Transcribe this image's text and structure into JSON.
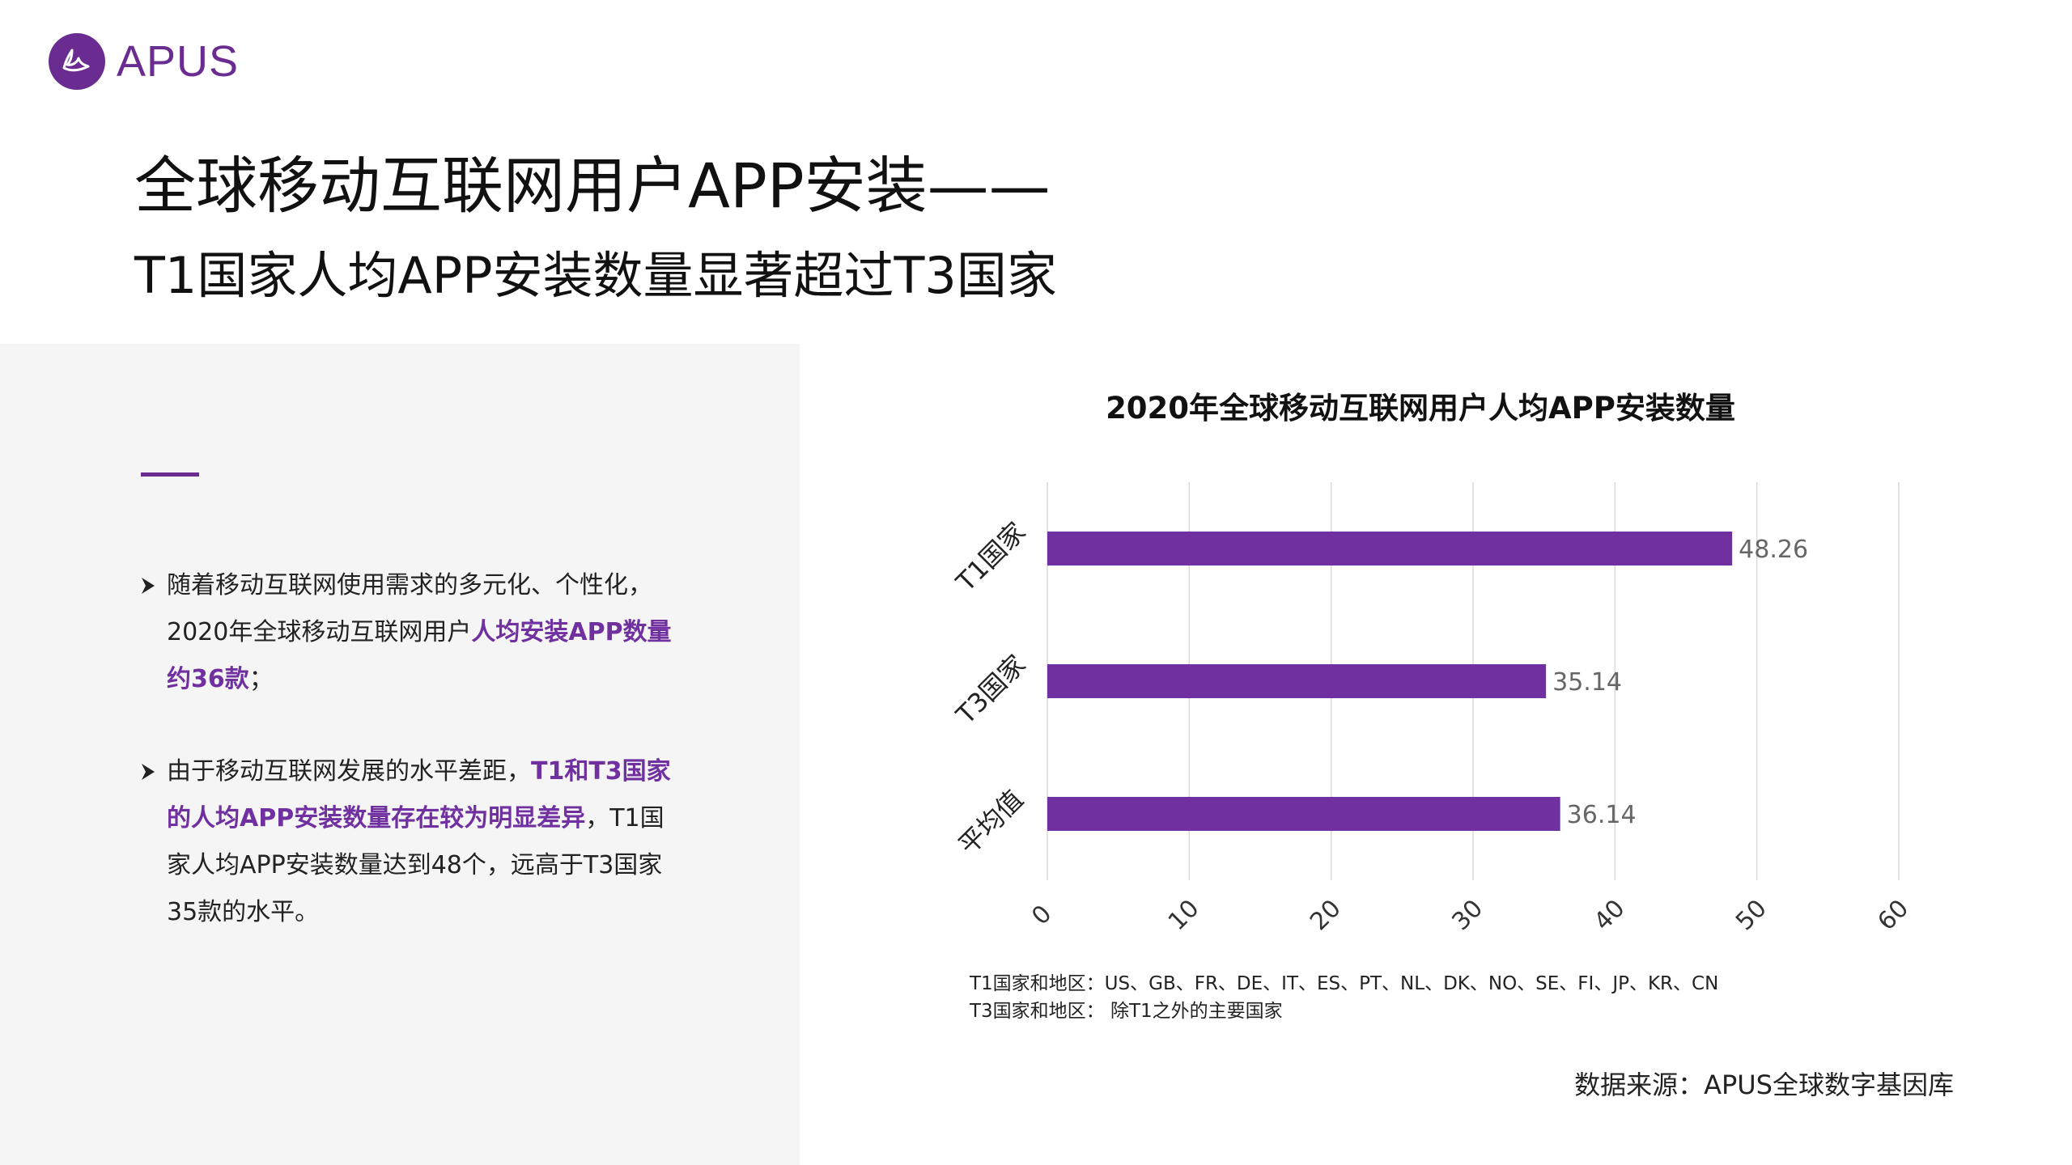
{
  "brand": {
    "name": "APUS",
    "color": "#6a2c91"
  },
  "title": {
    "main": "全球移动互联网用户APP安装——",
    "sub": "T1国家人均APP安装数量显著超过T3国家"
  },
  "bullets": [
    {
      "segments": [
        {
          "text": "随着移动互联网使用需求的多元化、个性化，2020年全球移动互联网用户",
          "highlight": false
        },
        {
          "text": "人均安装APP数量约36款",
          "highlight": true
        },
        {
          "text": "；",
          "highlight": false
        }
      ]
    },
    {
      "segments": [
        {
          "text": "由于移动互联网发展的水平差距，",
          "highlight": false
        },
        {
          "text": "T1和T3国家的人均APP安装数量存在较为明显差异",
          "highlight": true
        },
        {
          "text": "，T1国家人均APP安装数量达到48个，远高于T3国家35款的水平。",
          "highlight": false
        }
      ]
    }
  ],
  "chart_data": {
    "type": "bar",
    "orientation": "horizontal",
    "title": "2020年全球移动互联网用户人均APP安装数量",
    "categories": [
      "T1国家",
      "T3国家",
      "平均值"
    ],
    "values": [
      48.26,
      35.14,
      36.14
    ],
    "data_labels": [
      "48.26",
      "35.14",
      "36.14"
    ],
    "xlim": [
      0,
      60
    ],
    "xticks": [
      0,
      10,
      20,
      30,
      40,
      50,
      60
    ],
    "xtick_labels": [
      "0",
      "10",
      "20",
      "30",
      "40",
      "50",
      "60"
    ],
    "grid": true,
    "bar_color": "#7030a0",
    "legend": "none"
  },
  "notes": {
    "t1": "T1国家和地区：US、GB、FR、DE、IT、ES、PT、NL、DK、NO、SE、FI、JP、KR、CN",
    "t3": "T3国家和地区： 除T1之外的主要国家"
  },
  "source": "数据来源：APUS全球数字基因库"
}
